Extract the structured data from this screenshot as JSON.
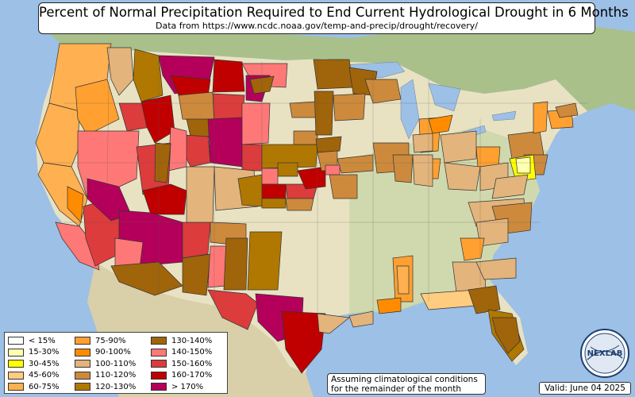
{
  "title": "Percent of Normal Precipitation Required to End Current Hydrological Drought in 6 Months",
  "subtitle": "Data from https://www.ncdc.noaa.gov/temp-and-precip/drought/recovery/",
  "assumption_note": "Assuming climatological conditions for the remainder of the month",
  "valid_date": "Valid: June 04 2025",
  "logo_text": "NEXLAB",
  "legend": [
    {
      "label": "< 15%",
      "color": "#ffffff"
    },
    {
      "label": "15-30%",
      "color": "#ffffb0"
    },
    {
      "label": "30-45%",
      "color": "#ffff00"
    },
    {
      "label": "45-60%",
      "color": "#ffcc80"
    },
    {
      "label": "60-75%",
      "color": "#ffb050"
    },
    {
      "label": "75-90%",
      "color": "#ffa030"
    },
    {
      "label": "90-100%",
      "color": "#ff8c00"
    },
    {
      "label": "100-110%",
      "color": "#e3b47c"
    },
    {
      "label": "110-120%",
      "color": "#cd8a3c"
    },
    {
      "label": "120-130%",
      "color": "#b07800"
    },
    {
      "label": "130-140%",
      "color": "#a0640a"
    },
    {
      "label": "140-150%",
      "color": "#ff7878"
    },
    {
      "label": "150-160%",
      "color": "#dc3c3c"
    },
    {
      "label": "160-170%",
      "color": "#c00000"
    },
    {
      "label": "> 170%",
      "color": "#b4005a"
    }
  ],
  "colors": {
    "ocean": "#9cc0e6",
    "land": "#e9e2c2",
    "land_green": "#c9d7a7",
    "canada": "#a9c08b",
    "mexico": "#d9cfa9"
  }
}
